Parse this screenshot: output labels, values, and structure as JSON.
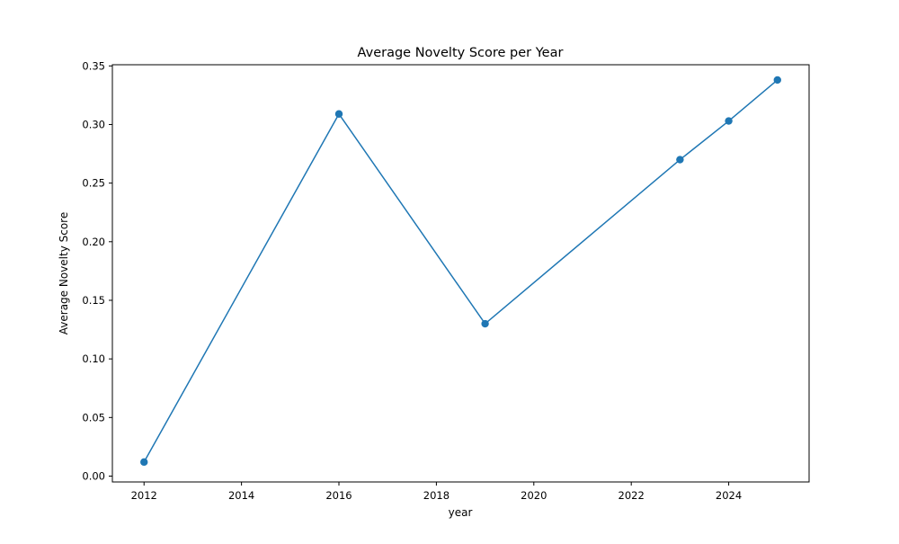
{
  "chart_data": {
    "type": "line",
    "title": "Average Novelty Score per Year",
    "xlabel": "year",
    "ylabel": "Average Novelty Score",
    "xlim": [
      2011.35,
      2025.65
    ],
    "ylim": [
      -0.005,
      0.351
    ],
    "xticks": [
      2012,
      2014,
      2016,
      2018,
      2020,
      2022,
      2024
    ],
    "yticks": [
      "0.00",
      "0.05",
      "0.10",
      "0.15",
      "0.20",
      "0.25",
      "0.30",
      "0.35"
    ],
    "grid": false,
    "series": [
      {
        "color": "#1f77b4",
        "x": [
          2012,
          2016,
          2019,
          2023,
          2024,
          2025
        ],
        "y": [
          0.012,
          0.309,
          0.13,
          0.27,
          0.303,
          0.338
        ]
      }
    ]
  }
}
